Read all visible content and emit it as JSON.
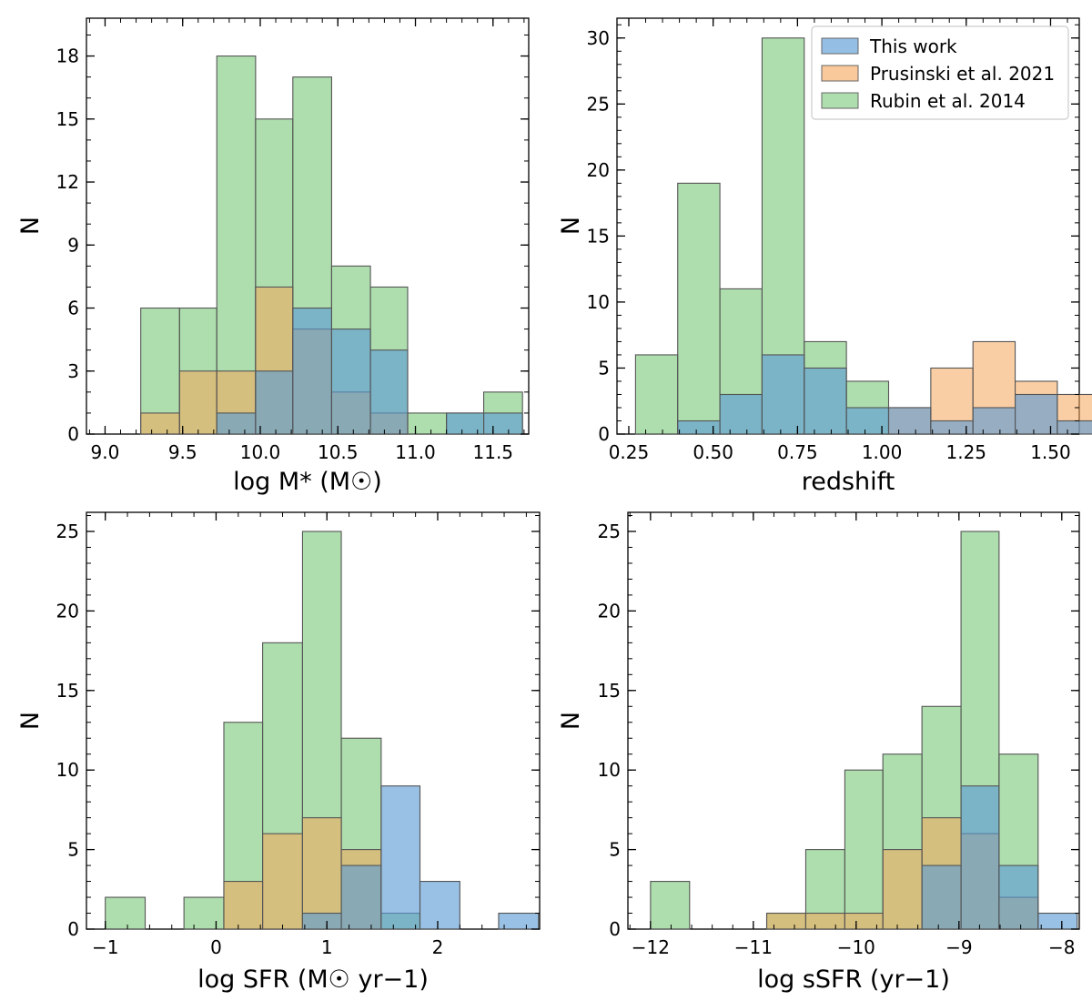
{
  "colors": {
    "this_work": "#5b9bd5",
    "prusinski": "#f5a55a",
    "rubin": "#6cc36c"
  },
  "chart_data": [
    {
      "type": "bar",
      "panel": "top-left",
      "xlabel": "log M* (M☉)",
      "ylabel": "N",
      "xlim": [
        8.88,
        11.73
      ],
      "ylim": [
        0,
        19.8
      ],
      "xticks": [
        9.0,
        9.5,
        10.0,
        10.5,
        11.0,
        11.5
      ],
      "xtick_labels": [
        "9.0",
        "9.5",
        "10.0",
        "10.5",
        "11.0",
        "11.5"
      ],
      "yticks": [
        0,
        3,
        6,
        9,
        12,
        15,
        18
      ],
      "ytick_labels": [
        "0",
        "3",
        "6",
        "9",
        "12",
        "15",
        "18"
      ],
      "series": [
        {
          "name": "Rubin et al. 2014",
          "color": "#6cc36c",
          "bins": [
            [
              9.23,
              9.48,
              6
            ],
            [
              9.48,
              9.72,
              6
            ],
            [
              9.72,
              9.97,
              18
            ],
            [
              9.97,
              10.21,
              15
            ],
            [
              10.21,
              10.46,
              17
            ],
            [
              10.46,
              10.71,
              8
            ],
            [
              10.71,
              10.95,
              7
            ],
            [
              10.95,
              11.2,
              1
            ],
            [
              11.2,
              11.44,
              1
            ],
            [
              11.44,
              11.69,
              2
            ]
          ]
        },
        {
          "name": "Prusinski et al. 2021",
          "color": "#f5a55a",
          "bins": [
            [
              9.23,
              9.48,
              1
            ],
            [
              9.48,
              9.72,
              3
            ],
            [
              9.72,
              9.97,
              3
            ],
            [
              9.97,
              10.21,
              7
            ],
            [
              10.21,
              10.46,
              5
            ],
            [
              10.46,
              10.71,
              2
            ],
            [
              10.71,
              10.95,
              1
            ]
          ]
        },
        {
          "name": "This work",
          "color": "#5b9bd5",
          "bins": [
            [
              9.72,
              9.97,
              1
            ],
            [
              9.97,
              10.21,
              3
            ],
            [
              10.21,
              10.46,
              6
            ],
            [
              10.46,
              10.71,
              5
            ],
            [
              10.71,
              10.95,
              4
            ],
            [
              11.2,
              11.44,
              1
            ],
            [
              11.44,
              11.69,
              1
            ]
          ]
        }
      ]
    },
    {
      "type": "bar",
      "panel": "top-right",
      "xlabel": "redshift",
      "ylabel": "N",
      "xlim": [
        0.215,
        1.585
      ],
      "ylim": [
        0,
        31.5
      ],
      "xticks": [
        0.25,
        0.5,
        0.75,
        1.0,
        1.25,
        1.5
      ],
      "xtick_labels": [
        "0.25",
        "0.50",
        "0.75",
        "1.00",
        "1.25",
        "1.50"
      ],
      "yticks": [
        0,
        5,
        10,
        15,
        20,
        25,
        30
      ],
      "ytick_labels": [
        "0",
        "5",
        "10",
        "15",
        "20",
        "25",
        "30"
      ],
      "legend": {
        "position": "top-right",
        "entries": [
          {
            "label": "This work",
            "color": "#5b9bd5"
          },
          {
            "label": "Prusinski et al. 2021",
            "color": "#f5a55a"
          },
          {
            "label": "Rubin et al. 2014",
            "color": "#6cc36c"
          }
        ]
      },
      "series": [
        {
          "name": "Rubin et al. 2014",
          "color": "#6cc36c",
          "bins": [
            [
              0.27,
              0.395,
              6
            ],
            [
              0.395,
              0.52,
              19
            ],
            [
              0.52,
              0.645,
              11
            ],
            [
              0.645,
              0.77,
              30
            ],
            [
              0.77,
              0.895,
              7
            ],
            [
              0.895,
              1.02,
              4
            ]
          ]
        },
        {
          "name": "Prusinski et al. 2021",
          "color": "#f5a55a",
          "bins": [
            [
              1.02,
              1.145,
              2
            ],
            [
              1.145,
              1.27,
              5
            ],
            [
              1.27,
              1.395,
              7
            ],
            [
              1.395,
              1.52,
              4
            ],
            [
              1.52,
              1.645,
              3
            ]
          ]
        },
        {
          "name": "This work",
          "color": "#5b9bd5",
          "bins": [
            [
              0.395,
              0.52,
              1
            ],
            [
              0.52,
              0.645,
              3
            ],
            [
              0.645,
              0.77,
              6
            ],
            [
              0.77,
              0.895,
              5
            ],
            [
              0.895,
              1.02,
              2
            ],
            [
              1.02,
              1.145,
              2
            ],
            [
              1.145,
              1.27,
              1
            ],
            [
              1.27,
              1.395,
              2
            ],
            [
              1.395,
              1.52,
              3
            ],
            [
              1.52,
              1.645,
              1
            ]
          ]
        }
      ]
    },
    {
      "type": "bar",
      "panel": "bottom-left",
      "xlabel": "log SFR (M☉ yr−1)",
      "ylabel": "N",
      "xlim": [
        -1.17,
        2.92
      ],
      "ylim": [
        0,
        26.2
      ],
      "xticks": [
        -1,
        0,
        1,
        2
      ],
      "xtick_labels": [
        "−1",
        "0",
        "1",
        "2"
      ],
      "yticks": [
        0,
        5,
        10,
        15,
        20,
        25
      ],
      "ytick_labels": [
        "0",
        "5",
        "10",
        "15",
        "20",
        "25"
      ],
      "series": [
        {
          "name": "Rubin et al. 2014",
          "color": "#6cc36c",
          "bins": [
            [
              -1.0,
              -0.64,
              2
            ],
            [
              -0.29,
              0.07,
              2
            ],
            [
              0.07,
              0.42,
              13
            ],
            [
              0.42,
              0.78,
              18
            ],
            [
              0.78,
              1.13,
              25
            ],
            [
              1.13,
              1.49,
              12
            ],
            [
              1.49,
              1.84,
              1
            ]
          ]
        },
        {
          "name": "Prusinski et al. 2021",
          "color": "#f5a55a",
          "bins": [
            [
              0.07,
              0.42,
              3
            ],
            [
              0.42,
              0.78,
              6
            ],
            [
              0.78,
              1.13,
              7
            ],
            [
              1.13,
              1.49,
              5
            ]
          ]
        },
        {
          "name": "This work",
          "color": "#5b9bd5",
          "bins": [
            [
              0.78,
              1.13,
              1
            ],
            [
              1.13,
              1.49,
              4
            ],
            [
              1.49,
              1.84,
              9
            ],
            [
              1.84,
              2.2,
              3
            ],
            [
              2.55,
              2.91,
              1
            ]
          ]
        }
      ]
    },
    {
      "type": "bar",
      "panel": "bottom-right",
      "xlabel": "log sSFR (yr−1)",
      "ylabel": "N",
      "xlim": [
        -12.22,
        -7.83
      ],
      "ylim": [
        0,
        26.2
      ],
      "xticks": [
        -12,
        -11,
        -10,
        -9,
        -8
      ],
      "xtick_labels": [
        "−12",
        "−11",
        "−10",
        "−9",
        "−8"
      ],
      "yticks": [
        0,
        5,
        10,
        15,
        20,
        25
      ],
      "ytick_labels": [
        "0",
        "5",
        "10",
        "15",
        "20",
        "25"
      ],
      "series": [
        {
          "name": "Rubin et al. 2014",
          "color": "#6cc36c",
          "bins": [
            [
              -12.0,
              -11.62,
              3
            ],
            [
              -10.87,
              -10.49,
              1
            ],
            [
              -10.49,
              -10.11,
              5
            ],
            [
              -10.11,
              -9.74,
              10
            ],
            [
              -9.74,
              -9.36,
              11
            ],
            [
              -9.36,
              -8.98,
              14
            ],
            [
              -8.98,
              -8.61,
              25
            ],
            [
              -8.61,
              -8.23,
              11
            ]
          ]
        },
        {
          "name": "Prusinski et al. 2021",
          "color": "#f5a55a",
          "bins": [
            [
              -10.87,
              -10.49,
              1
            ],
            [
              -10.49,
              -10.11,
              1
            ],
            [
              -10.11,
              -9.74,
              1
            ],
            [
              -9.74,
              -9.36,
              5
            ],
            [
              -9.36,
              -8.98,
              7
            ],
            [
              -8.98,
              -8.61,
              6
            ],
            [
              -8.61,
              -8.23,
              2
            ]
          ]
        },
        {
          "name": "This work",
          "color": "#5b9bd5",
          "bins": [
            [
              -9.36,
              -8.98,
              4
            ],
            [
              -8.98,
              -8.61,
              9
            ],
            [
              -8.61,
              -8.23,
              4
            ],
            [
              -8.23,
              -7.85,
              1
            ]
          ]
        }
      ]
    }
  ]
}
